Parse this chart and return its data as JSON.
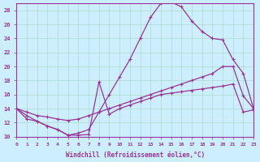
{
  "xlabel": "Windchill (Refroidissement éolien,°C)",
  "bg_color": "#cceeff",
  "line_color": "#993399",
  "grid_color": "#aaddcc",
  "xlim": [
    0,
    23
  ],
  "ylim": [
    10,
    29
  ],
  "yticks": [
    10,
    12,
    14,
    16,
    18,
    20,
    22,
    24,
    26,
    28
  ],
  "xticks": [
    0,
    1,
    2,
    3,
    4,
    5,
    6,
    7,
    8,
    9,
    10,
    11,
    12,
    13,
    14,
    15,
    16,
    17,
    18,
    19,
    20,
    21,
    22,
    23
  ],
  "line1_x": [
    0,
    1,
    2,
    3,
    4,
    5,
    6,
    7,
    8,
    9,
    10,
    11,
    12,
    13,
    14,
    15,
    16,
    17,
    18,
    19,
    20,
    21,
    22,
    23
  ],
  "line1_y": [
    14,
    13,
    12.2,
    11.5,
    11,
    10.2,
    10.5,
    11,
    13.5,
    16,
    18.5,
    21,
    24,
    27,
    29,
    29.2,
    28.5,
    26.5,
    25,
    24,
    23.8,
    21,
    19,
    14
  ],
  "line2_x": [
    0,
    1,
    2,
    3,
    4,
    5,
    6,
    7,
    8,
    9,
    10,
    11,
    12,
    13,
    14,
    15,
    16,
    17,
    18,
    19,
    20,
    21,
    22,
    23
  ],
  "line2_y": [
    14,
    13.5,
    13,
    12.8,
    12.5,
    12.3,
    12.5,
    13,
    13.5,
    14,
    14.5,
    15,
    15.5,
    16,
    16.5,
    17,
    17.5,
    18,
    18.5,
    19,
    20,
    20,
    15.8,
    14
  ],
  "line3_x": [
    0,
    1,
    2,
    3,
    4,
    5,
    6,
    7,
    8,
    9,
    10,
    11,
    12,
    13,
    14,
    15,
    16,
    17,
    18,
    19,
    20,
    21,
    22,
    23
  ],
  "line3_y": [
    14,
    12.5,
    12.2,
    11.5,
    11,
    10.2,
    10.2,
    10.3,
    17.8,
    13.2,
    14,
    14.5,
    15,
    15.5,
    16,
    16.2,
    16.4,
    16.6,
    16.8,
    17,
    17.2,
    17.5,
    13.5,
    13.8
  ],
  "marker": "+"
}
